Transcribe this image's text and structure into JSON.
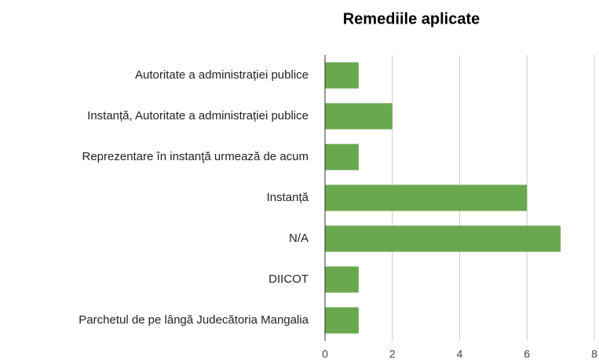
{
  "chart_data": {
    "type": "bar",
    "orientation": "horizontal",
    "title": "Remediile aplicate",
    "categories": [
      "Autoritate a administrației publice",
      "Instanță, Autoritate a administrației publice",
      "Reprezentare în instanţă urmează de acum",
      "Instanță",
      "N/A",
      "DIICOT",
      "Parchetul de pe lângă Judecătoria Mangalia"
    ],
    "values": [
      1,
      2,
      1,
      6,
      7,
      1,
      1
    ],
    "color": "#6aa84f",
    "xlim": [
      0,
      8
    ],
    "xticks": [
      0,
      2,
      4,
      6,
      8
    ],
    "grid": true
  }
}
